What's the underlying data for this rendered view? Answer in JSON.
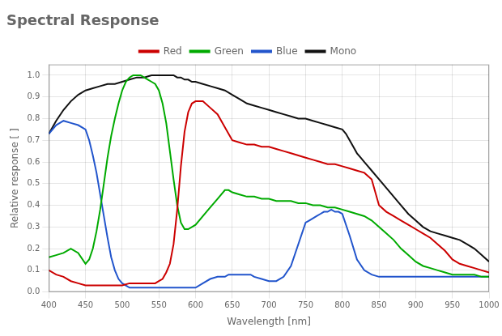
{
  "chart_data": {
    "type": "line",
    "title": "Spectral Response",
    "x_label": "Wavelength [nm]",
    "y_label": "Relative response [ ]",
    "xlim": [
      400,
      1000
    ],
    "ylim": [
      0.0,
      1.05
    ],
    "xticks": [
      400,
      450,
      500,
      550,
      600,
      650,
      700,
      750,
      800,
      850,
      900,
      950,
      1000
    ],
    "yticks": [
      {
        "value": 0.0,
        "label": "0.0"
      },
      0.1,
      0.2,
      0.3,
      0.4,
      0.5,
      0.6,
      0.7,
      0.8,
      0.9,
      {
        "value": 1.0,
        "label": "1.0"
      }
    ],
    "grid": true,
    "legend": "top",
    "series": [
      {
        "name": "Red",
        "color": "#cc0000",
        "x": [
          400,
          410,
          420,
          430,
          440,
          450,
          460,
          470,
          480,
          490,
          500,
          510,
          520,
          530,
          540,
          545,
          550,
          555,
          560,
          565,
          570,
          575,
          580,
          585,
          590,
          595,
          600,
          605,
          610,
          620,
          630,
          640,
          650,
          660,
          670,
          680,
          690,
          700,
          710,
          720,
          730,
          740,
          750,
          760,
          770,
          780,
          790,
          800,
          810,
          820,
          830,
          840,
          850,
          860,
          870,
          880,
          890,
          900,
          910,
          920,
          930,
          940,
          950,
          960,
          970,
          980,
          990,
          1000
        ],
        "values": [
          0.1,
          0.08,
          0.07,
          0.05,
          0.04,
          0.03,
          0.03,
          0.03,
          0.03,
          0.03,
          0.03,
          0.04,
          0.04,
          0.04,
          0.04,
          0.04,
          0.05,
          0.06,
          0.09,
          0.13,
          0.22,
          0.38,
          0.58,
          0.74,
          0.83,
          0.87,
          0.88,
          0.88,
          0.88,
          0.85,
          0.82,
          0.76,
          0.7,
          0.69,
          0.68,
          0.68,
          0.67,
          0.67,
          0.66,
          0.65,
          0.64,
          0.63,
          0.62,
          0.61,
          0.6,
          0.59,
          0.59,
          0.58,
          0.57,
          0.56,
          0.55,
          0.52,
          0.4,
          0.37,
          0.35,
          0.33,
          0.31,
          0.29,
          0.27,
          0.25,
          0.22,
          0.19,
          0.15,
          0.13,
          0.12,
          0.11,
          0.1,
          0.09
        ]
      },
      {
        "name": "Green",
        "color": "#00aa00",
        "x": [
          400,
          410,
          420,
          430,
          440,
          450,
          455,
          460,
          465,
          470,
          475,
          480,
          485,
          490,
          495,
          500,
          505,
          510,
          515,
          520,
          525,
          530,
          535,
          540,
          545,
          550,
          555,
          560,
          565,
          570,
          575,
          580,
          585,
          590,
          595,
          600,
          610,
          620,
          630,
          640,
          645,
          650,
          660,
          670,
          680,
          690,
          700,
          710,
          720,
          730,
          740,
          750,
          760,
          770,
          780,
          790,
          800,
          810,
          820,
          830,
          840,
          850,
          860,
          870,
          880,
          890,
          900,
          910,
          920,
          930,
          940,
          950,
          960,
          970,
          980,
          990,
          1000
        ],
        "values": [
          0.16,
          0.17,
          0.18,
          0.2,
          0.18,
          0.13,
          0.15,
          0.2,
          0.28,
          0.38,
          0.5,
          0.62,
          0.72,
          0.8,
          0.87,
          0.93,
          0.97,
          0.99,
          1.0,
          1.0,
          1.0,
          0.99,
          0.98,
          0.97,
          0.96,
          0.93,
          0.87,
          0.78,
          0.65,
          0.52,
          0.4,
          0.32,
          0.29,
          0.29,
          0.3,
          0.31,
          0.35,
          0.39,
          0.43,
          0.47,
          0.47,
          0.46,
          0.45,
          0.44,
          0.44,
          0.43,
          0.43,
          0.42,
          0.42,
          0.42,
          0.41,
          0.41,
          0.4,
          0.4,
          0.39,
          0.39,
          0.38,
          0.37,
          0.36,
          0.35,
          0.33,
          0.3,
          0.27,
          0.24,
          0.2,
          0.17,
          0.14,
          0.12,
          0.11,
          0.1,
          0.09,
          0.08,
          0.08,
          0.08,
          0.08,
          0.07,
          0.07
        ]
      },
      {
        "name": "Blue",
        "color": "#2255cc",
        "x": [
          400,
          410,
          420,
          430,
          440,
          450,
          455,
          460,
          465,
          470,
          475,
          480,
          485,
          490,
          495,
          500,
          505,
          510,
          515,
          520,
          525,
          530,
          535,
          540,
          545,
          550,
          555,
          560,
          565,
          570,
          575,
          580,
          590,
          600,
          610,
          620,
          630,
          635,
          640,
          645,
          650,
          655,
          660,
          665,
          670,
          675,
          680,
          690,
          700,
          710,
          720,
          730,
          740,
          750,
          755,
          760,
          765,
          770,
          775,
          780,
          785,
          790,
          795,
          800,
          810,
          820,
          830,
          840,
          850,
          860,
          870,
          880,
          900,
          950,
          1000
        ],
        "values": [
          0.73,
          0.77,
          0.79,
          0.78,
          0.77,
          0.75,
          0.7,
          0.63,
          0.55,
          0.45,
          0.35,
          0.25,
          0.16,
          0.1,
          0.06,
          0.04,
          0.03,
          0.02,
          0.02,
          0.02,
          0.02,
          0.02,
          0.02,
          0.02,
          0.02,
          0.02,
          0.02,
          0.02,
          0.02,
          0.02,
          0.02,
          0.02,
          0.02,
          0.02,
          0.04,
          0.06,
          0.07,
          0.07,
          0.07,
          0.08,
          0.08,
          0.08,
          0.08,
          0.08,
          0.08,
          0.08,
          0.07,
          0.06,
          0.05,
          0.05,
          0.07,
          0.12,
          0.22,
          0.32,
          0.33,
          0.34,
          0.35,
          0.36,
          0.37,
          0.37,
          0.38,
          0.37,
          0.37,
          0.36,
          0.26,
          0.15,
          0.1,
          0.08,
          0.07,
          0.07,
          0.07,
          0.07,
          0.07,
          0.07,
          0.07
        ]
      },
      {
        "name": "Mono",
        "color": "#111111",
        "x": [
          400,
          410,
          420,
          430,
          440,
          450,
          460,
          470,
          480,
          490,
          500,
          510,
          520,
          530,
          540,
          550,
          555,
          560,
          565,
          570,
          575,
          580,
          585,
          590,
          595,
          600,
          610,
          620,
          630,
          640,
          650,
          660,
          670,
          680,
          690,
          700,
          710,
          720,
          730,
          740,
          750,
          760,
          770,
          780,
          790,
          800,
          805,
          810,
          815,
          820,
          825,
          830,
          835,
          840,
          850,
          860,
          870,
          880,
          890,
          900,
          910,
          920,
          930,
          940,
          950,
          960,
          970,
          980,
          990,
          1000
        ],
        "values": [
          0.73,
          0.79,
          0.84,
          0.88,
          0.91,
          0.93,
          0.94,
          0.95,
          0.96,
          0.96,
          0.97,
          0.98,
          0.99,
          0.99,
          1.0,
          1.0,
          1.0,
          1.0,
          1.0,
          1.0,
          0.99,
          0.99,
          0.98,
          0.98,
          0.97,
          0.97,
          0.96,
          0.95,
          0.94,
          0.93,
          0.91,
          0.89,
          0.87,
          0.86,
          0.85,
          0.84,
          0.83,
          0.82,
          0.81,
          0.8,
          0.8,
          0.79,
          0.78,
          0.77,
          0.76,
          0.75,
          0.73,
          0.7,
          0.67,
          0.64,
          0.62,
          0.6,
          0.58,
          0.56,
          0.52,
          0.48,
          0.44,
          0.4,
          0.36,
          0.33,
          0.3,
          0.28,
          0.27,
          0.26,
          0.25,
          0.24,
          0.22,
          0.2,
          0.17,
          0.14
        ]
      }
    ]
  }
}
